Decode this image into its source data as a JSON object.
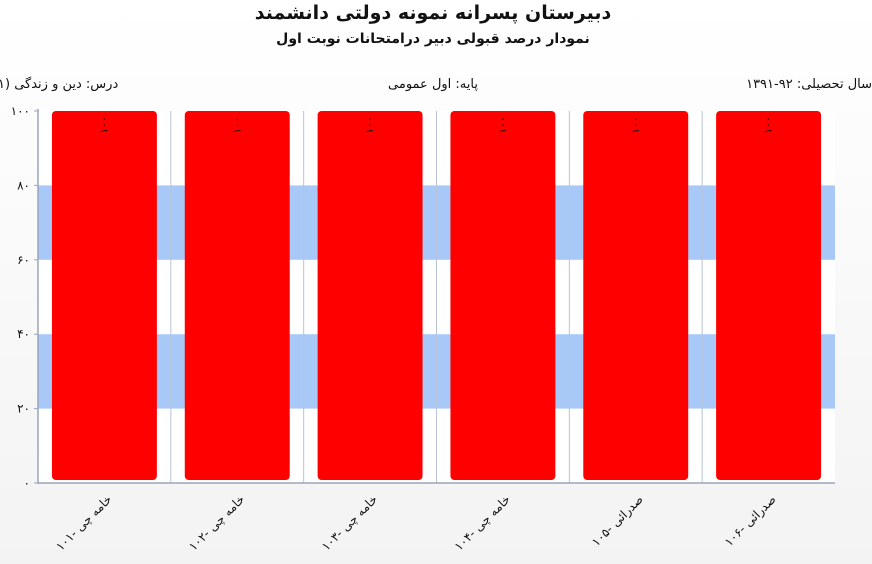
{
  "header": {
    "title": "دبیرستان پسرانه نمونه دولتی دانشمند",
    "subtitle": "نمودار درصد قبولی دبیر درامتحانات نوبت اول",
    "course": "درس: دین  و زندگی (۱",
    "grade": "پایه: اول عمومی",
    "year": "سال تحصیلی: ۹۲-۱۳۹۱"
  },
  "chart_data": {
    "type": "bar",
    "categories": [
      "خامه چی -۱۰۱",
      "خامه چی -۱۰۲",
      "خامه چی -۱۰۳",
      "خامه چی -۱۰۴",
      "صدرائی -۱۰۵",
      "صدرائی -۱۰۶"
    ],
    "values": [
      100,
      100,
      100,
      100,
      100,
      100
    ],
    "data_labels": [
      "۱۰۰",
      "۱۰۰",
      "۱۰۰",
      "۱۰۰",
      "۱۰۰",
      "۱۰۰"
    ],
    "ylim": [
      0,
      100
    ],
    "yticks": [
      0,
      20,
      40,
      60,
      80,
      100
    ],
    "ytick_labels": [
      "۰",
      "۲۰",
      "۴۰",
      "۶۰",
      "۸۰",
      "۱۰۰"
    ],
    "grid": true,
    "band_color": "#a8c9f8",
    "bar_color": "#ff0000",
    "xlabel": "",
    "ylabel": ""
  }
}
